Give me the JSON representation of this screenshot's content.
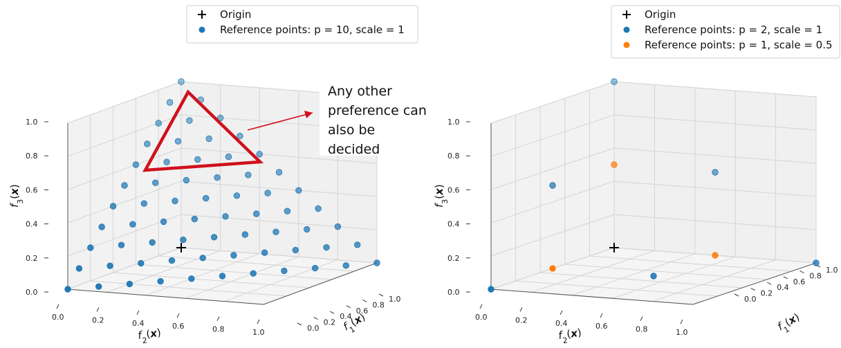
{
  "chart_data": [
    {
      "type": "scatter",
      "title": "",
      "xlabel": "f_1(x)",
      "ylabel": "f_2(x)",
      "zlabel": "f_3(x)",
      "x_ticks": [
        "0.0",
        "0.2",
        "0.4",
        "0.6",
        "0.8",
        "1.0"
      ],
      "y_ticks": [
        "0.0",
        "0.2",
        "0.4",
        "0.6",
        "0.8",
        "1.0"
      ],
      "z_ticks": [
        "0.0",
        "0.2",
        "0.4",
        "0.6",
        "0.8",
        "1.0"
      ],
      "xlim": [
        0,
        1
      ],
      "ylim": [
        0,
        1
      ],
      "zlim": [
        0,
        1
      ],
      "grid": true,
      "legend_position": "top-center",
      "legend": [
        {
          "label": "Origin",
          "marker": "plus",
          "color": "#000000"
        },
        {
          "label": "Reference points: p = 10, scale = 1",
          "marker": "circle",
          "color": "#1f77b4"
        }
      ],
      "series": [
        {
          "name": "Origin",
          "points": [
            [
              0,
              0,
              0
            ]
          ]
        },
        {
          "name": "Reference points: p = 10, scale = 1",
          "simplex_divisions": 10,
          "scale": 1
        }
      ],
      "annotation": {
        "lines": [
          "Any other",
          "preference can",
          "also be",
          "decided"
        ],
        "highlight_color": "#d0101b"
      }
    },
    {
      "type": "scatter",
      "title": "",
      "xlabel": "f_1(x)",
      "ylabel": "f_2(x)",
      "zlabel": "f_3(x)",
      "x_ticks": [
        "0.0",
        "0.2",
        "0.4",
        "0.6",
        "0.8",
        "1.0"
      ],
      "y_ticks": [
        "0.0",
        "0.2",
        "0.4",
        "0.6",
        "0.8",
        "1.0"
      ],
      "z_ticks": [
        "0.0",
        "0.2",
        "0.4",
        "0.6",
        "0.8",
        "1.0"
      ],
      "xlim": [
        0,
        1
      ],
      "ylim": [
        0,
        1
      ],
      "zlim": [
        0,
        1
      ],
      "grid": true,
      "legend_position": "top-right",
      "legend": [
        {
          "label": "Origin",
          "marker": "plus",
          "color": "#000000"
        },
        {
          "label": "Reference points: p = 2, scale = 1",
          "marker": "circle",
          "color": "#1f77b4"
        },
        {
          "label": "Reference points: p = 1, scale = 0.5",
          "marker": "circle",
          "color": "#ff7f0e"
        }
      ],
      "series": [
        {
          "name": "Origin",
          "points": [
            [
              0,
              0,
              0
            ]
          ]
        },
        {
          "name": "Reference points: p = 2, scale = 1",
          "points": [
            [
              1,
              0,
              0
            ],
            [
              0.5,
              0.5,
              0
            ],
            [
              0,
              1,
              0
            ],
            [
              0.5,
              0,
              0.5
            ],
            [
              0,
              0.5,
              0.5
            ],
            [
              0,
              0,
              1
            ]
          ]
        },
        {
          "name": "Reference points: p = 1, scale = 0.5",
          "points": [
            [
              0.5,
              0,
              0
            ],
            [
              0,
              0.5,
              0
            ],
            [
              0,
              0,
              0.5
            ]
          ]
        }
      ]
    }
  ]
}
